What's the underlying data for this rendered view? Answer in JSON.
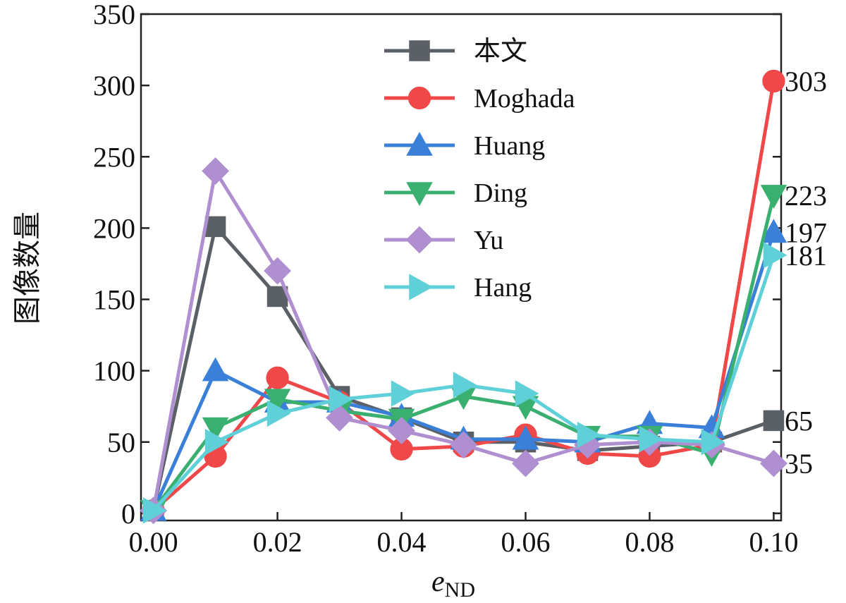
{
  "chart_data": {
    "type": "line",
    "xlabel": "e",
    "xlabel_sub": "ND",
    "ylabel": "图像数量",
    "xlim": [
      -0.002,
      0.1012
    ],
    "ylim": [
      -5,
      350
    ],
    "xticks": [
      "0.00",
      "0.02",
      "0.04",
      "0.06",
      "0.08",
      "0.10"
    ],
    "xtick_values": [
      0,
      0.02,
      0.04,
      0.06,
      0.08,
      0.1
    ],
    "yticks": [
      "0",
      "50",
      "100",
      "150",
      "200",
      "250",
      "300",
      "350"
    ],
    "ytick_values": [
      0,
      50,
      100,
      150,
      200,
      250,
      300,
      350
    ],
    "grid": false,
    "legend_position": "top-center",
    "x": [
      0,
      0.01,
      0.02,
      0.03,
      0.04,
      0.05,
      0.06,
      0.07,
      0.08,
      0.09,
      0.1
    ],
    "series": [
      {
        "name": "本文",
        "color": "#5a6066",
        "marker": "square",
        "values": [
          2,
          201,
          152,
          82,
          67,
          50,
          50,
          44,
          47,
          50,
          65
        ]
      },
      {
        "name": "Moghada",
        "color": "#f04848",
        "marker": "circle",
        "values": [
          2,
          40,
          95,
          78,
          45,
          47,
          55,
          42,
          40,
          48,
          303
        ]
      },
      {
        "name": "Huang",
        "color": "#3a7fd8",
        "marker": "triangle-up",
        "values": [
          2,
          100,
          78,
          78,
          68,
          52,
          52,
          50,
          63,
          60,
          197
        ]
      },
      {
        "name": "Ding",
        "color": "#3ab070",
        "marker": "triangle-down",
        "values": [
          2,
          60,
          80,
          72,
          66,
          82,
          75,
          54,
          54,
          42,
          223
        ]
      },
      {
        "name": "Yu",
        "color": "#b08fd0",
        "marker": "diamond",
        "values": [
          2,
          240,
          170,
          67,
          58,
          48,
          35,
          48,
          50,
          48,
          35
        ]
      },
      {
        "name": "Hang",
        "color": "#60d0d8",
        "marker": "triangle-right",
        "values": [
          2,
          50,
          70,
          80,
          84,
          90,
          84,
          55,
          52,
          50,
          181
        ]
      }
    ],
    "end_labels": [
      {
        "text": "303",
        "value": 303
      },
      {
        "text": "223",
        "value": 223
      },
      {
        "text": "197",
        "value": 197
      },
      {
        "text": "181",
        "value": 181
      },
      {
        "text": "65",
        "value": 65
      },
      {
        "text": "35",
        "value": 35
      }
    ]
  }
}
